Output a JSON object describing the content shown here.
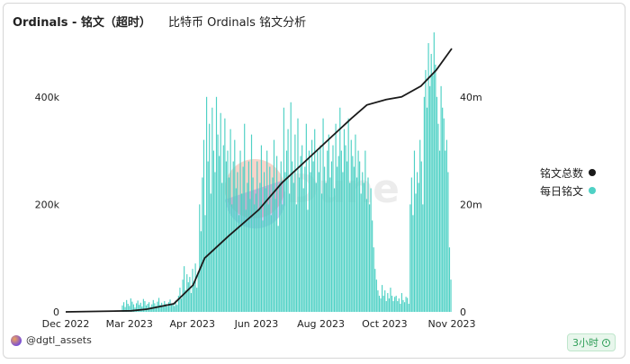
{
  "header": {
    "title": "Ordinals - 铭文（超时）",
    "subtitle": "比特币 Ordinals 铭文分析"
  },
  "legend": [
    {
      "label": "铭文总数",
      "color": "#1a1a1a"
    },
    {
      "label": "每日铭文",
      "color": "#4fd1c5"
    }
  ],
  "footer": {
    "user": "@dgtl_assets",
    "refresh": "3小时"
  },
  "watermark": "Dune",
  "chart_data": {
    "type": "bar",
    "x_labels": [
      "Dec 2022",
      "Mar 2023",
      "Apr 2023",
      "Jun 2023",
      "Aug 2023",
      "Oct 2023",
      "Nov 2023"
    ],
    "y_left_ticks": [
      "0",
      "200k",
      "400k"
    ],
    "y_right_ticks": [
      "0",
      "20m",
      "40m"
    ],
    "ylim_left": [
      0,
      500000
    ],
    "ylim_right": [
      0,
      50000000
    ],
    "grid": false,
    "legend_position": "right",
    "series": [
      {
        "name": "每日铭文",
        "axis": "left",
        "type": "bar",
        "color": "#4fd1c5",
        "values": [
          0,
          0,
          0,
          0,
          0,
          0,
          0,
          0,
          0,
          0,
          0,
          0,
          0,
          0,
          0,
          0,
          0,
          0,
          0,
          0,
          0,
          0,
          0,
          0,
          0,
          0,
          0,
          0,
          0,
          0,
          0,
          0,
          0,
          0,
          0,
          0,
          0,
          0,
          0,
          0,
          12000,
          18000,
          9000,
          22000,
          15000,
          11000,
          25000,
          19000,
          14000,
          8000,
          16000,
          21000,
          13000,
          17000,
          10000,
          24000,
          20000,
          12000,
          15000,
          18000,
          9000,
          14000,
          22000,
          16000,
          11000,
          19000,
          26000,
          13000,
          17000,
          12000,
          20000,
          15000,
          10000,
          18000,
          23000,
          14000,
          16000,
          11000,
          21000,
          13000,
          30000,
          45000,
          25000,
          60000,
          85000,
          40000,
          70000,
          55000,
          65000,
          35000,
          80000,
          50000,
          90000,
          45000,
          75000,
          200000,
          150000,
          250000,
          320000,
          180000,
          400000,
          280000,
          350000,
          220000,
          380000,
          300000,
          260000,
          400000,
          330000,
          290000,
          370000,
          240000,
          310000,
          360000,
          280000,
          300000,
          250000,
          340000,
          200000,
          280000,
          320000,
          230000,
          260000,
          180000,
          300000,
          220000,
          270000,
          350000,
          190000,
          240000,
          280000,
          210000,
          330000,
          250000,
          200000,
          220000,
          280000,
          190000,
          240000,
          310000,
          170000,
          260000,
          230000,
          300000,
          200000,
          270000,
          180000,
          250000,
          320000,
          210000,
          290000,
          160000,
          240000,
          280000,
          200000,
          380000,
          260000,
          300000,
          340000,
          220000,
          390000,
          280000,
          240000,
          330000,
          200000,
          360000,
          250000,
          290000,
          310000,
          230000,
          270000,
          350000,
          190000,
          300000,
          260000,
          320000,
          280000,
          340000,
          240000,
          300000,
          260000,
          310000,
          220000,
          360000,
          270000,
          240000,
          300000,
          330000,
          250000,
          280000,
          310000,
          230000,
          350000,
          270000,
          290000,
          380000,
          300000,
          260000,
          340000,
          310000,
          280000,
          360000,
          240000,
          320000,
          290000,
          270000,
          330000,
          250000,
          300000,
          280000,
          220000,
          260000,
          240000,
          300000,
          210000,
          250000,
          200000,
          230000,
          170000,
          120000,
          80000,
          60000,
          40000,
          30000,
          25000,
          50000,
          30000,
          40000,
          20000,
          35000,
          25000,
          45000,
          30000,
          20000,
          28000,
          30000,
          20000,
          25000,
          15000,
          35000,
          22000,
          18000,
          28000,
          26000,
          15000,
          200000,
          250000,
          180000,
          300000,
          220000,
          260000,
          240000,
          320000,
          280000,
          200000,
          400000,
          450000,
          380000,
          500000,
          420000,
          480000,
          440000,
          520000,
          460000,
          400000,
          350000,
          300000,
          420000,
          380000,
          360000,
          300000,
          320000,
          260000,
          120000,
          60000
        ]
      },
      {
        "name": "铭文总数",
        "axis": "right",
        "type": "line",
        "color": "#1a1a1a",
        "points": [
          {
            "x": 0.0,
            "y": 0
          },
          {
            "x": 0.17,
            "y": 200000
          },
          {
            "x": 0.21,
            "y": 500000
          },
          {
            "x": 0.28,
            "y": 1500000
          },
          {
            "x": 0.33,
            "y": 5000000
          },
          {
            "x": 0.36,
            "y": 10000000
          },
          {
            "x": 0.42,
            "y": 14000000
          },
          {
            "x": 0.5,
            "y": 19000000
          },
          {
            "x": 0.56,
            "y": 24000000
          },
          {
            "x": 0.62,
            "y": 28000000
          },
          {
            "x": 0.68,
            "y": 32000000
          },
          {
            "x": 0.74,
            "y": 36000000
          },
          {
            "x": 0.78,
            "y": 38500000
          },
          {
            "x": 0.83,
            "y": 39500000
          },
          {
            "x": 0.87,
            "y": 40000000
          },
          {
            "x": 0.92,
            "y": 42000000
          },
          {
            "x": 0.96,
            "y": 45000000
          },
          {
            "x": 1.0,
            "y": 49000000
          }
        ]
      }
    ]
  }
}
